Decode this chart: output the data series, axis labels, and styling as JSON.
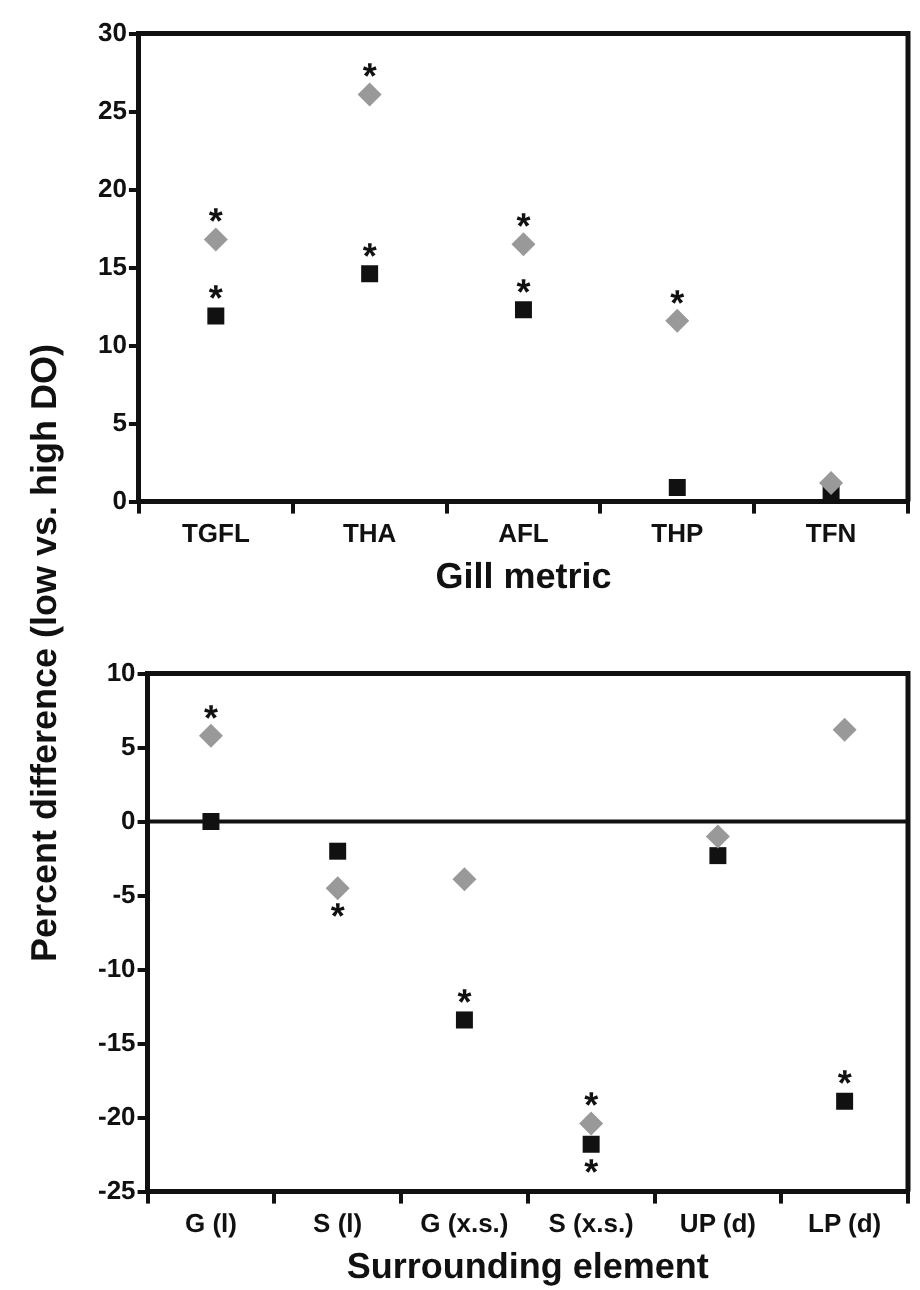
{
  "chart_data": [
    {
      "type": "scatter",
      "ylabel": "Percent difference (low vs. high DO)",
      "xlabel": "Gill metric",
      "categories": [
        "TGFL",
        "THA",
        "AFL",
        "THP",
        "TFN"
      ],
      "ylim": [
        0,
        30
      ],
      "yticks": [
        0,
        5,
        10,
        15,
        20,
        25,
        30
      ],
      "grid": false,
      "legend": false,
      "series": [
        {
          "color": "#999999",
          "marker": "diamond",
          "values": [
            16.8,
            26.1,
            16.5,
            11.6,
            1.2
          ]
        },
        {
          "color": "#111111",
          "marker": "square",
          "values": [
            11.9,
            14.6,
            12.3,
            0.9,
            0.5
          ]
        }
      ],
      "annotations": [
        {
          "text": "*",
          "x": "TGFL",
          "y": 16.8
        },
        {
          "text": "*",
          "x": "TGFL",
          "y": 11.9
        },
        {
          "text": "*",
          "x": "THA",
          "y": 26.1
        },
        {
          "text": "*",
          "x": "THA",
          "y": 14.6
        },
        {
          "text": "*",
          "x": "AFL",
          "y": 16.5
        },
        {
          "text": "*",
          "x": "AFL",
          "y": 12.3
        },
        {
          "text": "*",
          "x": "THP",
          "y": 11.6
        }
      ]
    },
    {
      "type": "scatter",
      "xlabel": "Surrounding element",
      "categories": [
        "G (l)",
        "S (l)",
        "G (x.s.)",
        "S (x.s.)",
        "UP (d)",
        "LP (d)"
      ],
      "ylim": [
        -25,
        10
      ],
      "yticks": [
        -25,
        -20,
        -15,
        -10,
        -5,
        0,
        5,
        10
      ],
      "grid": false,
      "legend": false,
      "series": [
        {
          "color": "#999999",
          "marker": "diamond",
          "values": [
            5.8,
            -4.5,
            -3.9,
            -20.4,
            -1.0,
            6.2
          ]
        },
        {
          "color": "#111111",
          "marker": "square",
          "values": [
            0,
            -2.0,
            -13.4,
            -21.8,
            -2.3,
            -18.9
          ]
        }
      ],
      "ref_lines": [
        {
          "axis": "y",
          "value": 0,
          "color": "#111111"
        }
      ],
      "annotations": [
        {
          "text": "*",
          "x": "G (l)",
          "y": 5.8
        },
        {
          "text": "*",
          "x": "S (l)",
          "y": -4.5
        },
        {
          "text": "*",
          "x": "G (x.s.)",
          "y": -13.4
        },
        {
          "text": "*",
          "x": "S (x.s.)",
          "y": -20.4
        },
        {
          "text": "*",
          "x": "S (x.s.)",
          "y": -21.8
        },
        {
          "text": "*",
          "x": "LP (d)",
          "y": -18.9
        }
      ]
    }
  ]
}
